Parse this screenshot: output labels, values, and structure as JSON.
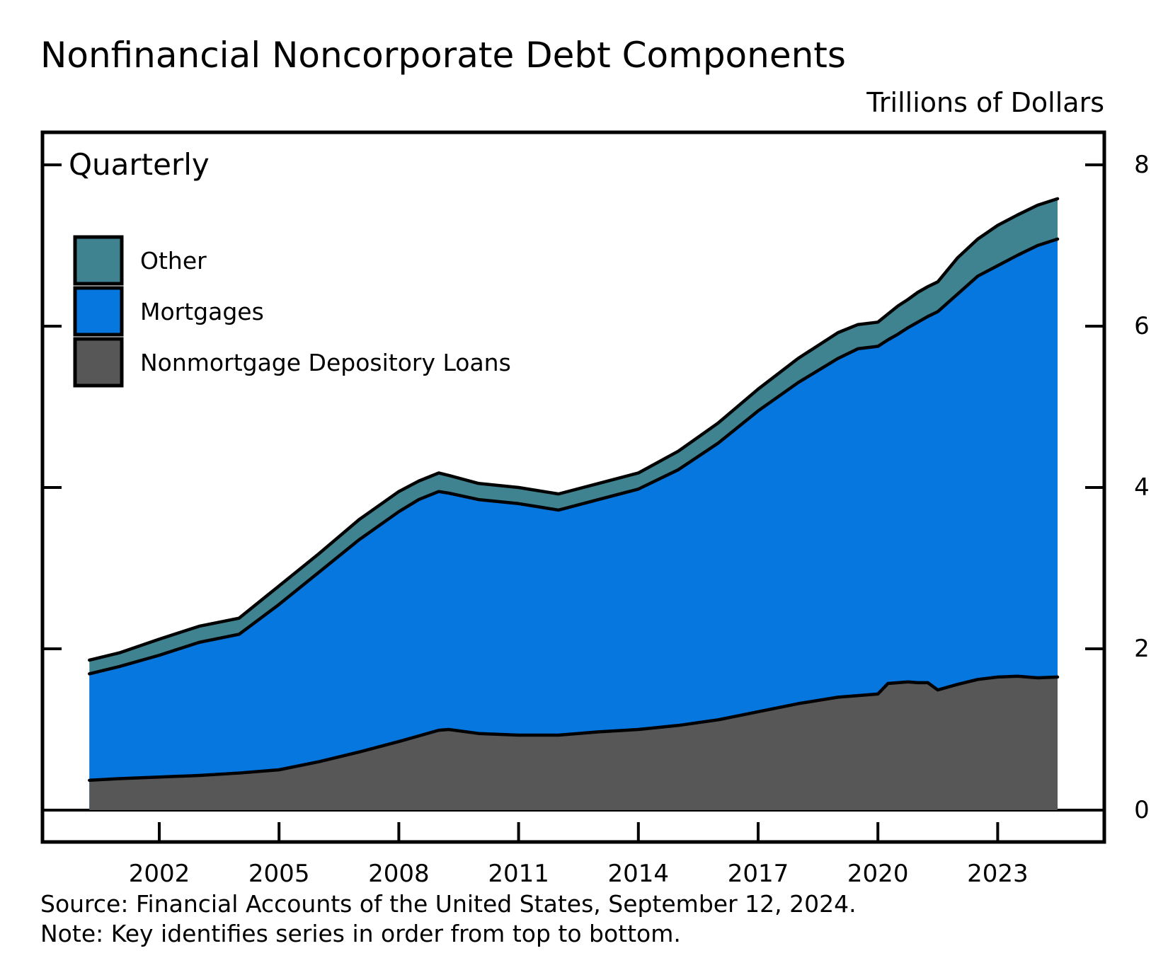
{
  "title": "Nonfinancial Noncorporate Debt Components",
  "units_label": "Trillions of Dollars",
  "frequency_label": "Quarterly",
  "footer": {
    "source": "Source: Financial Accounts of the United States, September 12, 2024.",
    "note": "Note: Key identifies series in order from top to bottom."
  },
  "colors": {
    "other": "#3f8290",
    "mortgages": "#0777e0",
    "nonmortgage": "#575757",
    "outline": "#000000"
  },
  "chart_data": {
    "type": "area",
    "stacked": true,
    "title": "Nonfinancial Noncorporate Debt Components",
    "subtitle_inside_plot": "Quarterly",
    "ylabel": "Trillions of Dollars",
    "ylim": [
      0,
      8
    ],
    "yticks": [
      0,
      2,
      4,
      6,
      8
    ],
    "xticks": [
      2002,
      2005,
      2008,
      2011,
      2014,
      2017,
      2020,
      2023
    ],
    "x_range": [
      2000.25,
      2024.5
    ],
    "grid": false,
    "legend_position": "top-left",
    "legend_note": "series listed top to bottom",
    "x": [
      2000.25,
      2001,
      2002,
      2003,
      2004,
      2005,
      2006,
      2007,
      2008,
      2008.5,
      2009,
      2009.25,
      2010,
      2011,
      2012,
      2013,
      2014,
      2015,
      2016,
      2017,
      2018,
      2019,
      2019.5,
      2020,
      2020.25,
      2020.5,
      2020.75,
      2021,
      2021.25,
      2021.5,
      2022,
      2022.5,
      2023,
      2023.5,
      2024,
      2024.5
    ],
    "series": [
      {
        "name": "Other",
        "color": "#3f8290",
        "values": [
          0.17,
          0.17,
          0.2,
          0.2,
          0.2,
          0.23,
          0.23,
          0.25,
          0.25,
          0.23,
          0.23,
          0.22,
          0.2,
          0.2,
          0.2,
          0.2,
          0.2,
          0.23,
          0.25,
          0.27,
          0.3,
          0.32,
          0.3,
          0.3,
          0.32,
          0.35,
          0.35,
          0.37,
          0.37,
          0.37,
          0.45,
          0.46,
          0.5,
          0.5,
          0.5,
          0.5
        ]
      },
      {
        "name": "Mortgages",
        "color": "#0777e0",
        "values": [
          1.32,
          1.39,
          1.51,
          1.65,
          1.72,
          2.05,
          2.35,
          2.63,
          2.85,
          2.93,
          2.96,
          2.93,
          2.9,
          2.87,
          2.79,
          2.88,
          2.98,
          3.17,
          3.43,
          3.73,
          3.98,
          4.2,
          4.3,
          4.31,
          4.26,
          4.32,
          4.39,
          4.47,
          4.54,
          4.69,
          4.84,
          5.0,
          5.1,
          5.22,
          5.36,
          5.43
        ]
      },
      {
        "name": "Nonmortgage Depository Loans",
        "color": "#575757",
        "values": [
          0.37,
          0.39,
          0.41,
          0.43,
          0.46,
          0.5,
          0.6,
          0.72,
          0.85,
          0.92,
          0.99,
          1.0,
          0.95,
          0.93,
          0.93,
          0.97,
          1.0,
          1.05,
          1.12,
          1.22,
          1.32,
          1.4,
          1.42,
          1.44,
          1.57,
          1.58,
          1.59,
          1.58,
          1.58,
          1.49,
          1.56,
          1.62,
          1.65,
          1.66,
          1.64,
          1.65
        ]
      }
    ]
  }
}
